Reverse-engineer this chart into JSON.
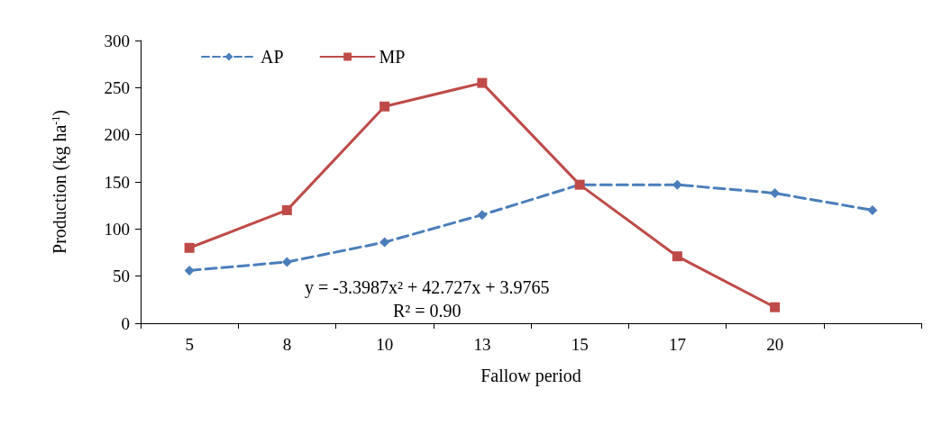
{
  "chart_data": {
    "type": "line",
    "xlabel": "Fallow period",
    "ylabel": "Production (kg ha$^{-1}$)",
    "categories": [
      "5",
      "8",
      "10",
      "13",
      "15",
      "17",
      "20",
      null
    ],
    "series": [
      {
        "name": "AP",
        "color": "#4a7ebb",
        "marker": "diamond",
        "line_style": "dashed",
        "values": [
          56,
          65,
          86,
          115,
          147,
          147,
          138,
          120
        ]
      },
      {
        "name": "MP",
        "color": "#be4b48",
        "marker": "square",
        "line_style": "solid",
        "values": [
          80,
          120,
          230,
          255,
          147,
          71,
          17,
          null
        ]
      }
    ],
    "ylim": [
      0,
      300
    ],
    "yticks": [
      0,
      50,
      100,
      150,
      200,
      250,
      300
    ],
    "grid": false,
    "legend": "top left",
    "annotations": [
      "y = -3.3987x² + 42.727x + 3.9765",
      "R² = 0.90"
    ]
  }
}
